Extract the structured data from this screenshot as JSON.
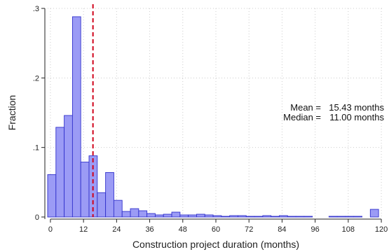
{
  "chart_data": {
    "type": "bar",
    "xlabel": "Construction project duration (months)",
    "ylabel": "Fraction",
    "xlim": [
      -1,
      121
    ],
    "ylim": [
      0,
      0.3
    ],
    "bin_width": 3,
    "x_ticks": [
      0,
      12,
      24,
      36,
      48,
      60,
      72,
      84,
      96,
      108,
      120
    ],
    "y_ticks": [
      {
        "value": 0,
        "label": "0"
      },
      {
        "value": 0.1,
        "label": ".1"
      },
      {
        "value": 0.2,
        "label": ".2"
      },
      {
        "value": 0.3,
        "label": ".3"
      }
    ],
    "bin_starts": [
      -1,
      2,
      5,
      8,
      11,
      14,
      17,
      20,
      23,
      26,
      29,
      32,
      35,
      38,
      41,
      44,
      47,
      50,
      53,
      56,
      59,
      62,
      65,
      68,
      71,
      74,
      77,
      80,
      83,
      86,
      89,
      92,
      95,
      98,
      101,
      104,
      107,
      110,
      113,
      116
    ],
    "values": [
      0.061,
      0.129,
      0.146,
      0.288,
      0.079,
      0.088,
      0.035,
      0.064,
      0.024,
      0.008,
      0.012,
      0.009,
      0.005,
      0.003,
      0.004,
      0.007,
      0.003,
      0.003,
      0.004,
      0.003,
      0.002,
      0.001,
      0.002,
      0.002,
      0.001,
      0.001,
      0.002,
      0.001,
      0.002,
      0.001,
      0.001,
      0.001,
      0,
      0,
      0.001,
      0.001,
      0.001,
      0.001,
      0,
      0.011
    ],
    "mean_line": {
      "x": 15.43
    },
    "annotations": {
      "mean_label": "Mean =",
      "mean_value": "15.43 months",
      "median_label": "Median =",
      "median_value": "11.00 months"
    },
    "colors": {
      "bar_fill": "#9b9bf5",
      "bar_stroke": "#3333cc",
      "mean_line": "#d0021b",
      "grid": "#cccccc"
    },
    "grid": true
  }
}
